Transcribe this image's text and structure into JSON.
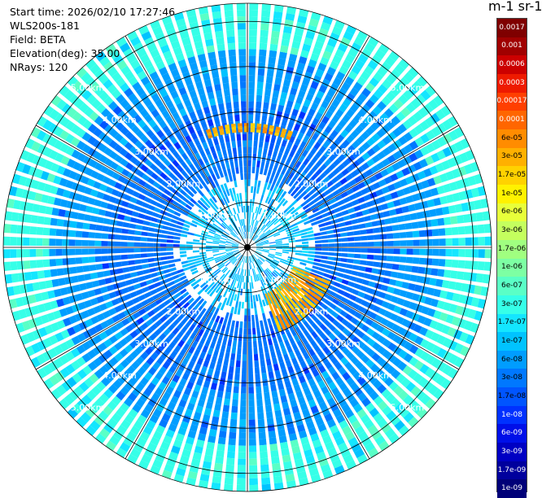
{
  "header": {
    "start_time": "Start time: 2026/02/10 17:27:46",
    "device": "WLS200s-181",
    "field": "Field: BETA",
    "elevation": "Elevation(deg): 35.00",
    "nrays": "NRays: 120"
  },
  "colorbar": {
    "unit_title": "m-1 sr-1",
    "labels": [
      "0.0017",
      "0.001",
      "0.0006",
      "0.0003",
      "0.00017",
      "0.0001",
      "6e-05",
      "3e-05",
      "1.7e-05",
      "1e-05",
      "6e-06",
      "3e-06",
      "1.7e-06",
      "1e-06",
      "6e-07",
      "3e-07",
      "1.7e-07",
      "1e-07",
      "6e-08",
      "3e-08",
      "1.7e-08",
      "1e-08",
      "6e-09",
      "3e-09",
      "1.7e-09",
      "1e-09"
    ],
    "colors": [
      "#7f0000",
      "#a00000",
      "#cc0000",
      "#ee1a00",
      "#ff3f00",
      "#ff6600",
      "#ff8c00",
      "#ffb000",
      "#ffd200",
      "#fff200",
      "#e8ff3a",
      "#c4ff5e",
      "#a0ff80",
      "#7dffa3",
      "#5affc6",
      "#36ffe8",
      "#14e6ff",
      "#00c3ff",
      "#009dff",
      "#0078ff",
      "#0055ff",
      "#0031ff",
      "#000fe8",
      "#0000c3",
      "#00009d",
      "#000078"
    ],
    "dark_text_indices": [
      0,
      1,
      2,
      3,
      4,
      5,
      21,
      22,
      23,
      24,
      25
    ]
  },
  "chart_data": {
    "type": "heatmap",
    "projection": "polar PPI",
    "field": "BETA",
    "elevation_deg": 35.0,
    "n_rays": 120,
    "range_km_max": 5.4,
    "range_rings_km": [
      1,
      2,
      3,
      4,
      5
    ],
    "ring_labels": [
      "1.00km",
      "2.00km",
      "3.00km",
      "4.00km",
      "5.00km"
    ],
    "azimuth_lines_deg": [
      0,
      30,
      60,
      90,
      120,
      150,
      180,
      210,
      240,
      270,
      300,
      330
    ],
    "range_bands_km": [
      {
        "from": 0.2,
        "to": 1.5,
        "level": "1e-07"
      },
      {
        "from": 1.5,
        "to": 3.3,
        "level": "3e-08"
      },
      {
        "from": 3.3,
        "to": 4.4,
        "level": "6e-08"
      },
      {
        "from": 4.4,
        "to": 5.4,
        "level": "3e-07"
      }
    ],
    "features": [
      {
        "az_from": 340,
        "az_to": 20,
        "range_km_from": 2.55,
        "range_km_to": 2.75,
        "level": "3e-05"
      },
      {
        "az_from": 112,
        "az_to": 160,
        "range_km_from": 1.1,
        "range_km_to": 2.0,
        "level": "3e-05"
      }
    ]
  }
}
